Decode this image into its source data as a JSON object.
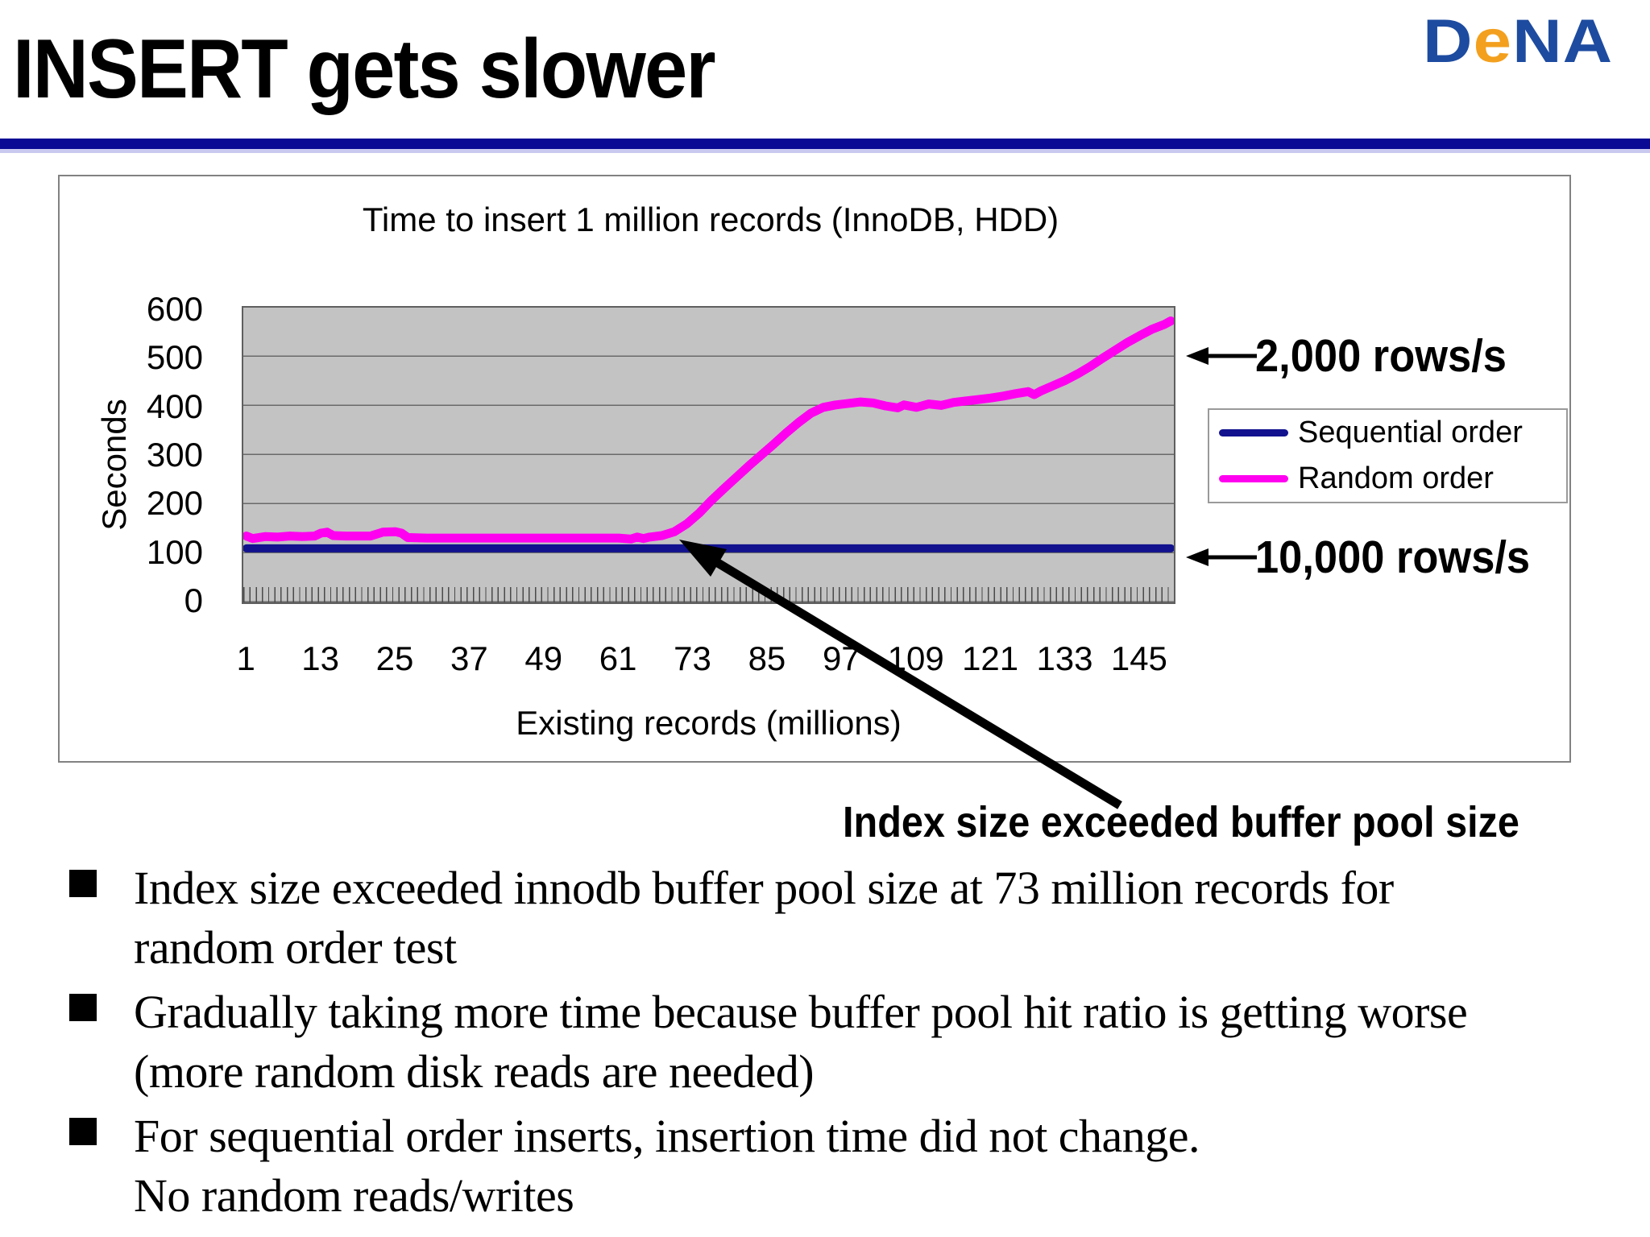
{
  "slide": {
    "title": "INSERT gets slower"
  },
  "logo": {
    "d": "D",
    "e": "e",
    "na": "NA",
    "blue": "#1d4ba0",
    "orange": "#f3a01e"
  },
  "chart_data": {
    "type": "line",
    "title": "Time to insert 1 million records (InnoDB, HDD)",
    "xlabel": "Existing records (millions)",
    "ylabel": "Seconds",
    "xlim": [
      0,
      150
    ],
    "ylim": [
      0,
      600
    ],
    "grid": "horizontal",
    "plot_bg": "#c3c3c3",
    "legend_position": "right",
    "x_ticks": [
      "1",
      "13",
      "25",
      "37",
      "49",
      "61",
      "73",
      "85",
      "97",
      "109",
      "121",
      "133",
      "145"
    ],
    "y_ticks": [
      "600",
      "500",
      "400",
      "300",
      "200",
      "100",
      "0"
    ],
    "series": [
      {
        "name": "Sequential order",
        "color": "#12128f",
        "points": [
          [
            1,
            110
          ],
          [
            150,
            110
          ]
        ]
      },
      {
        "name": "Random order",
        "color": "#ff00f0",
        "points": [
          [
            1,
            135
          ],
          [
            2,
            130
          ],
          [
            4,
            134
          ],
          [
            6,
            133
          ],
          [
            8,
            135
          ],
          [
            10,
            134
          ],
          [
            12,
            135
          ],
          [
            13,
            141
          ],
          [
            14,
            143
          ],
          [
            15,
            136
          ],
          [
            17,
            135
          ],
          [
            19,
            135
          ],
          [
            21,
            135
          ],
          [
            23,
            143
          ],
          [
            25,
            144
          ],
          [
            26,
            141
          ],
          [
            27,
            132
          ],
          [
            30,
            131
          ],
          [
            34,
            131
          ],
          [
            38,
            131
          ],
          [
            42,
            131
          ],
          [
            46,
            131
          ],
          [
            50,
            131
          ],
          [
            54,
            131
          ],
          [
            58,
            131
          ],
          [
            61,
            131
          ],
          [
            63,
            129
          ],
          [
            64,
            133
          ],
          [
            65,
            130
          ],
          [
            66,
            133
          ],
          [
            68,
            136
          ],
          [
            70,
            144
          ],
          [
            72,
            160
          ],
          [
            74,
            182
          ],
          [
            76,
            208
          ],
          [
            78,
            232
          ],
          [
            80,
            255
          ],
          [
            82,
            278
          ],
          [
            84,
            300
          ],
          [
            86,
            322
          ],
          [
            88,
            345
          ],
          [
            90,
            366
          ],
          [
            92,
            385
          ],
          [
            94,
            397
          ],
          [
            96,
            402
          ],
          [
            98,
            405
          ],
          [
            100,
            408
          ],
          [
            102,
            406
          ],
          [
            104,
            400
          ],
          [
            106,
            396
          ],
          [
            107,
            402
          ],
          [
            109,
            397
          ],
          [
            111,
            404
          ],
          [
            113,
            401
          ],
          [
            115,
            407
          ],
          [
            117,
            410
          ],
          [
            119,
            413
          ],
          [
            121,
            416
          ],
          [
            123,
            420
          ],
          [
            125,
            425
          ],
          [
            127,
            429
          ],
          [
            128,
            423
          ],
          [
            129,
            430
          ],
          [
            131,
            441
          ],
          [
            133,
            452
          ],
          [
            135,
            465
          ],
          [
            137,
            480
          ],
          [
            139,
            497
          ],
          [
            141,
            513
          ],
          [
            143,
            529
          ],
          [
            145,
            543
          ],
          [
            147,
            556
          ],
          [
            149,
            566
          ],
          [
            150,
            573
          ]
        ]
      }
    ],
    "annotations": [
      "2,000 rows/s",
      "10,000 rows/s",
      "Index size exceeded buffer pool size"
    ]
  },
  "annotations": {
    "rate_top": "2,000 rows/s",
    "rate_bottom": "10,000 rows/s",
    "buffer": "Index size exceeded buffer pool size"
  },
  "bullets": [
    {
      "lines": [
        "Index size exceeded innodb buffer pool size at 73 million records for",
        "random order test"
      ]
    },
    {
      "lines": [
        "Gradually taking more time because buffer pool hit ratio is getting worse",
        "(more random disk reads are needed)"
      ]
    },
    {
      "lines": [
        "For sequential order inserts, insertion time did not change.",
        "No random reads/writes"
      ]
    }
  ]
}
